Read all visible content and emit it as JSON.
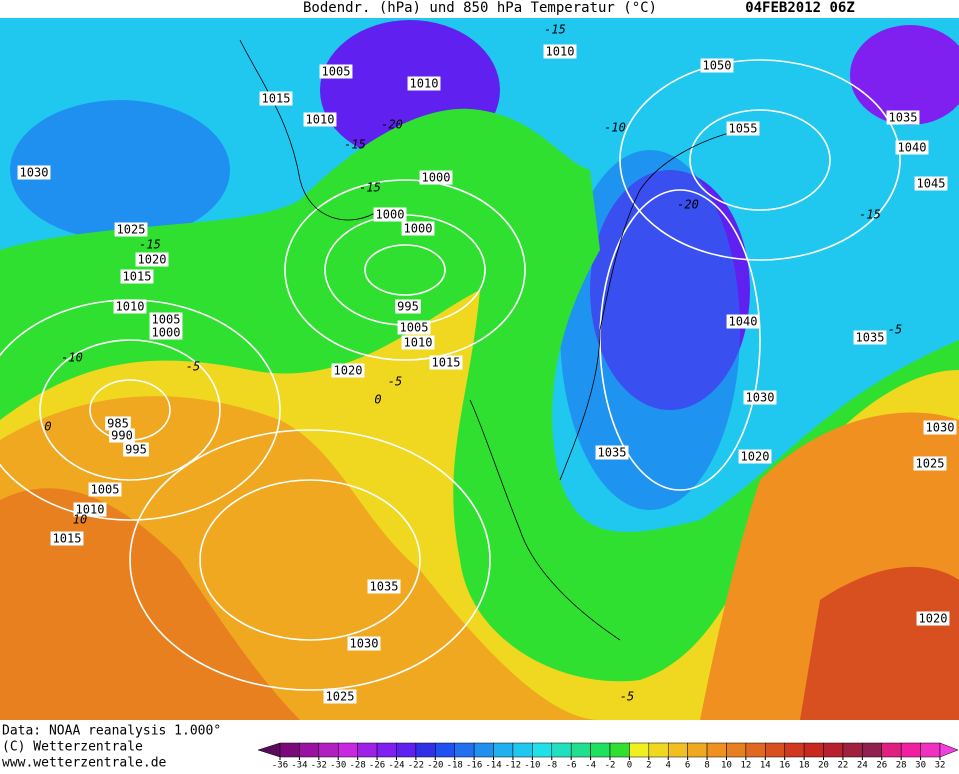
{
  "header": {
    "title": "Bodendr. (hPa) und 850 hPa Temperatur (°C)",
    "date": "04FEB2012 06Z"
  },
  "footer": {
    "lines": [
      "Data: NOAA reanalysis 1.000°",
      "(C) Wetterzentrale",
      "www.wetterzentrale.de"
    ]
  },
  "isobar_labels": [
    1010,
    1005,
    1010,
    1015,
    1010,
    1030,
    1025,
    1020,
    1015,
    1010,
    1005,
    1000,
    995,
    1000,
    1000,
    1000,
    1005,
    1010,
    1015,
    1020,
    985,
    990,
    995,
    1005,
    1010,
    1015,
    1035,
    1030,
    1025,
    1050,
    1055,
    1035,
    1040,
    1045,
    1040,
    1035,
    1035,
    1030,
    1020,
    1030,
    1025,
    1020
  ],
  "temperature_labels": [
    -15,
    -20,
    -15,
    -10,
    -20,
    -15,
    -15,
    -10,
    -5,
    0,
    -5,
    0,
    10,
    -5,
    -15,
    -5
  ],
  "colorbar": {
    "ticks": [
      -36,
      -34,
      -32,
      -30,
      -28,
      -26,
      -24,
      -22,
      -20,
      -18,
      -16,
      -14,
      -12,
      -10,
      -8,
      -6,
      -4,
      -2,
      0,
      2,
      4,
      6,
      8,
      10,
      12,
      14,
      16,
      18,
      20,
      22,
      24,
      26,
      28,
      30,
      32
    ],
    "colors": [
      "#5a0a5a",
      "#7a0a7a",
      "#9a10a0",
      "#b020c0",
      "#c828e0",
      "#a020e8",
      "#8020f0",
      "#6020f0",
      "#3030e8",
      "#2050f0",
      "#2070f0",
      "#2090f0",
      "#20b0f0",
      "#20c8f0",
      "#20e0e8",
      "#20e0c0",
      "#20e090",
      "#20e060",
      "#30e030",
      "#f0f020",
      "#f0d820",
      "#f0c020",
      "#f0a820",
      "#f09020",
      "#e88020",
      "#e06820",
      "#d85020",
      "#d03820",
      "#c82820",
      "#b82030",
      "#a02040",
      "#902050",
      "#e02080",
      "#f020a0",
      "#f030c0",
      "#f040e0"
    ]
  }
}
